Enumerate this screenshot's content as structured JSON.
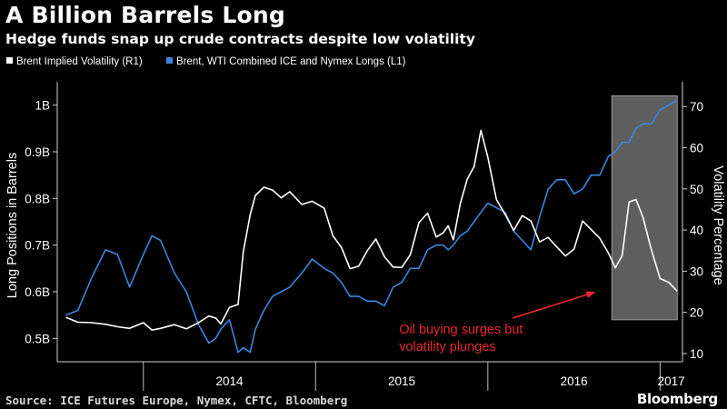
{
  "header": {
    "title": "A Billion Barrels Long",
    "subtitle": "Hedge funds snap up crude contracts despite low volatility"
  },
  "footer": {
    "source": "Source: ICE Futures Europe, Nymex, CFTC, Bloomberg",
    "brand": "Bloomberg"
  },
  "colors": {
    "background": "#000000",
    "longs_series": "#3d86e0",
    "volatility_series": "#ffffff",
    "annotation": "#e8262b",
    "highlight_box": "#6f6f6f"
  },
  "chart_data": {
    "type": "line",
    "title": "A Billion Barrels Long",
    "subtitle": "Hedge funds snap up crude contracts despite low volatility",
    "x_axis": {
      "tick_labels": [
        "2014",
        "2015",
        "2016",
        "2017"
      ],
      "range": [
        "2013-07",
        "2017-02"
      ]
    },
    "y_left": {
      "label": "Long Positions in Barrels",
      "range": [
        0.45,
        1.05
      ],
      "tick_values": [
        0.5,
        0.6,
        0.7,
        0.8,
        0.9,
        1.0
      ],
      "tick_labels": [
        "0.5B",
        "0.6B",
        "0.7B",
        "0.8B",
        "0.9B",
        "1B"
      ]
    },
    "y_right": {
      "label": "Volatility Percentage",
      "range": [
        8,
        76
      ],
      "tick_values": [
        10,
        20,
        30,
        40,
        50,
        60,
        70
      ],
      "tick_labels": [
        "10",
        "20",
        "30",
        "40",
        "50",
        "60",
        "70"
      ]
    },
    "grid": false,
    "legend_position": "top-left",
    "series": [
      {
        "name": "Brent Implied Volatility (R1)",
        "axis": "right",
        "color": "#ffffff",
        "x": [
          2013.55,
          2013.62,
          2013.7,
          2013.78,
          2013.85,
          2013.92,
          2014.0,
          2014.05,
          2014.1,
          2014.18,
          2014.25,
          2014.32,
          2014.38,
          2014.42,
          2014.45,
          2014.5,
          2014.55,
          2014.58,
          2014.62,
          2014.65,
          2014.7,
          2014.75,
          2014.8,
          2014.85,
          2014.92,
          2014.98,
          2015.05,
          2015.1,
          2015.15,
          2015.2,
          2015.25,
          2015.3,
          2015.35,
          2015.4,
          2015.45,
          2015.5,
          2015.55,
          2015.6,
          2015.65,
          2015.7,
          2015.74,
          2015.77,
          2015.8,
          2015.84,
          2015.88,
          2015.92,
          2015.96,
          2016.0,
          2016.05,
          2016.1,
          2016.15,
          2016.2,
          2016.25,
          2016.3,
          2016.35,
          2016.4,
          2016.45,
          2016.5,
          2016.55,
          2016.6,
          2016.65,
          2016.7,
          2016.74,
          2016.78,
          2016.82,
          2016.86,
          2016.9,
          2016.95,
          2017.0,
          2017.05,
          2017.1
        ],
        "values": [
          18.8,
          17.6,
          17.5,
          17.1,
          16.5,
          16.1,
          17.5,
          15.7,
          16.1,
          17.0,
          16.0,
          17.5,
          19.1,
          18.6,
          17.2,
          21.2,
          21.9,
          34.7,
          43.7,
          48.4,
          50.4,
          49.7,
          47.8,
          49.3,
          46.2,
          47.0,
          45.3,
          38.6,
          35.8,
          30.6,
          31.2,
          35.0,
          37.8,
          33.5,
          31.0,
          30.9,
          34.0,
          41.8,
          44.1,
          38.3,
          39.3,
          41.0,
          37.6,
          46.4,
          52.3,
          55.4,
          64.2,
          57.7,
          47.4,
          43.8,
          39.9,
          43.5,
          42.2,
          37.1,
          38.2,
          35.9,
          33.7,
          35.3,
          42.2,
          40.1,
          38.0,
          34.4,
          30.8,
          33.8,
          46.8,
          47.4,
          43.2,
          35.1,
          28.2,
          27.3,
          25.1
        ]
      },
      {
        "name": "Brent, WTI Combined ICE and Nymex Longs (L1)",
        "axis": "left",
        "color": "#3d86e0",
        "x": [
          2013.55,
          2013.62,
          2013.7,
          2013.78,
          2013.85,
          2013.92,
          2014.0,
          2014.05,
          2014.1,
          2014.18,
          2014.25,
          2014.32,
          2014.38,
          2014.42,
          2014.45,
          2014.5,
          2014.55,
          2014.58,
          2014.62,
          2014.65,
          2014.7,
          2014.75,
          2014.8,
          2014.85,
          2014.92,
          2014.98,
          2015.05,
          2015.1,
          2015.15,
          2015.2,
          2015.25,
          2015.3,
          2015.35,
          2015.4,
          2015.45,
          2015.5,
          2015.55,
          2015.6,
          2015.65,
          2015.7,
          2015.74,
          2015.77,
          2015.8,
          2015.84,
          2015.88,
          2015.92,
          2015.96,
          2016.0,
          2016.05,
          2016.1,
          2016.15,
          2016.2,
          2016.25,
          2016.3,
          2016.35,
          2016.4,
          2016.45,
          2016.5,
          2016.55,
          2016.6,
          2016.65,
          2016.7,
          2016.74,
          2016.78,
          2016.82,
          2016.86,
          2016.9,
          2016.95,
          2017.0,
          2017.05,
          2017.1
        ],
        "values": [
          0.55,
          0.56,
          0.63,
          0.69,
          0.68,
          0.61,
          0.68,
          0.72,
          0.71,
          0.64,
          0.6,
          0.53,
          0.49,
          0.5,
          0.52,
          0.54,
          0.47,
          0.48,
          0.47,
          0.52,
          0.56,
          0.59,
          0.6,
          0.61,
          0.64,
          0.67,
          0.65,
          0.64,
          0.62,
          0.59,
          0.59,
          0.58,
          0.58,
          0.57,
          0.61,
          0.62,
          0.65,
          0.65,
          0.69,
          0.7,
          0.7,
          0.69,
          0.7,
          0.72,
          0.73,
          0.75,
          0.77,
          0.79,
          0.78,
          0.77,
          0.73,
          0.71,
          0.69,
          0.76,
          0.82,
          0.84,
          0.84,
          0.81,
          0.82,
          0.85,
          0.85,
          0.89,
          0.9,
          0.92,
          0.92,
          0.95,
          0.96,
          0.96,
          0.99,
          1.0,
          1.01
        ]
      }
    ],
    "highlight": {
      "x_range": [
        2016.72,
        2017.1
      ],
      "y_left_range": [
        0.54,
        1.02
      ]
    },
    "annotation": {
      "lines": [
        "Oil buying surges but",
        "volatility plunges"
      ],
      "x": 2016.25,
      "y_left": 0.53,
      "arrow_to": {
        "x": 2016.62,
        "y_left": 0.599
      }
    }
  }
}
